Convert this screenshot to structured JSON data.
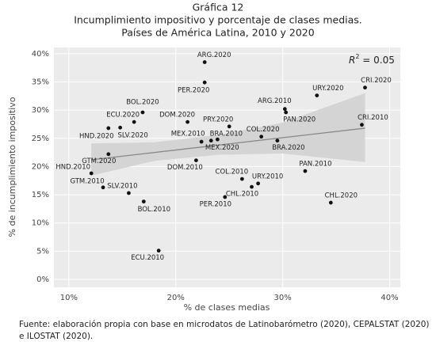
{
  "chart_data": {
    "type": "scatter",
    "title": [
      "Gráfica 12",
      "Incumplimiento impositivo y porcentaje de clases medias.",
      "Países de América Latina, 2010 y 2020"
    ],
    "x_label": "% de clases medias",
    "y_label": "% de incumplimiento impositivo",
    "annotation": {
      "symbol": "R",
      "superscript": "2",
      "text": " = 0.05"
    },
    "source": [
      "Fuente: elaboración propia con base en microdatos de Latinobarómetro (2020), CEPALSTAT (2020)",
      "e ILOSTAT (2020)."
    ],
    "labels": [
      "ARG.2020",
      "PER.2020",
      "BOL.2020",
      "ECU.2020",
      "DOM.2020",
      "HND.2020",
      "SLV.2020",
      "GTM.2020",
      "HND.2010",
      "GTM.2010",
      "SLV.2010",
      "BOL.2010",
      "ECU.2010",
      "MEX.2010",
      "BRA.2010",
      "PRY.2020",
      "MEX.2020",
      "DOM.2010",
      "COL.2020",
      "BRA.2020",
      "ARG.2010",
      "PAN.2020",
      "URY.2020",
      "CRI.2020",
      "CRI.2010",
      "PAN.2010",
      "COL.2010",
      "URY.2010",
      "CHL.2010",
      "PER.2010",
      "CHL.2020"
    ],
    "x": [
      22.7,
      22.7,
      16.9,
      16.1,
      21.1,
      13.7,
      14.8,
      13.7,
      12.1,
      13.2,
      15.6,
      17.0,
      18.4,
      22.4,
      23.9,
      25.0,
      23.3,
      21.9,
      28.0,
      29.5,
      30.2,
      30.3,
      33.2,
      37.7,
      37.4,
      32.1,
      26.2,
      27.7,
      27.1,
      24.6,
      34.5
    ],
    "y": [
      38.5,
      34.9,
      29.6,
      27.9,
      27.9,
      26.8,
      26.9,
      22.2,
      18.8,
      16.3,
      15.3,
      13.8,
      5.1,
      24.4,
      24.8,
      27.1,
      24.6,
      21.1,
      25.3,
      24.6,
      30.2,
      29.6,
      32.6,
      34.0,
      27.4,
      19.2,
      17.8,
      17.0,
      16.4,
      14.6,
      13.6
    ],
    "color": "#111111",
    "fit": {
      "x": [
        12.1,
        37.7
      ],
      "y": [
        21.2,
        26.8
      ],
      "color": "#888888",
      "band_x": [
        12.1,
        18,
        24,
        30,
        37.7
      ],
      "band_lower": [
        18.4,
        21.0,
        22.1,
        22.3,
        20.8
      ],
      "band_upper": [
        24.1,
        24.3,
        25.6,
        27.8,
        33.0
      ],
      "band_color": "#d4d4d4"
    },
    "xlim": [
      8.6,
      41
    ],
    "ylim": [
      -1.4,
      41.1
    ],
    "xticks": [
      {
        "value": 10,
        "label": "10%"
      },
      {
        "value": 20,
        "label": "20%"
      },
      {
        "value": 30,
        "label": "30%"
      },
      {
        "value": 40,
        "label": "40%"
      }
    ],
    "yticks": [
      {
        "value": 0,
        "label": "0%"
      },
      {
        "value": 5,
        "label": "5%"
      },
      {
        "value": 10,
        "label": "10%"
      },
      {
        "value": 15,
        "label": "15%"
      },
      {
        "value": 20,
        "label": "20%"
      },
      {
        "value": 25,
        "label": "25%"
      },
      {
        "value": 30,
        "label": "30%"
      },
      {
        "value": 35,
        "label": "35%"
      },
      {
        "value": 40,
        "label": "40%"
      }
    ],
    "grid": true
  }
}
